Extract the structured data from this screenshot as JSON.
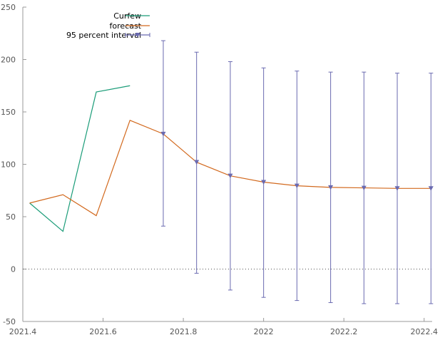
{
  "chart_data": {
    "type": "line",
    "title": "",
    "xlabel": "",
    "ylabel": "",
    "xlim": [
      2021.4,
      2022.42
    ],
    "ylim": [
      -50,
      250
    ],
    "xticks": [
      2021.4,
      2021.6,
      2021.8,
      2022,
      2022.2,
      2022.4
    ],
    "xtick_labels": [
      "2021.4",
      "2021.6",
      "2021.8",
      "2022",
      "2022.2",
      "2022.4"
    ],
    "yticks": [
      -50,
      0,
      50,
      100,
      150,
      200,
      250
    ],
    "ytick_labels": [
      "-50",
      "0",
      "50",
      "100",
      "150",
      "200",
      "250"
    ],
    "grid": false,
    "zero_line": true,
    "legend_position": "top-left",
    "series": [
      {
        "name": "Curfew",
        "color": "#1a9c78",
        "x": [
          2021.417,
          2021.5,
          2021.583,
          2021.667
        ],
        "values": [
          63,
          36,
          169,
          175
        ]
      },
      {
        "name": "forecast",
        "color": "#d2691e",
        "x": [
          2021.417,
          2021.5,
          2021.583,
          2021.667,
          2021.75,
          2021.833,
          2021.917,
          2022.0,
          2022.083,
          2022.167,
          2022.25,
          2022.333,
          2022.417
        ],
        "values": [
          63,
          71,
          51,
          142,
          129,
          102,
          89,
          83,
          79.5,
          78,
          77.5,
          77,
          77
        ]
      },
      {
        "name": "95 percent interval",
        "color": "#6a6ab0",
        "x": [
          2021.75,
          2021.833,
          2021.917,
          2022.0,
          2022.083,
          2022.167,
          2022.25,
          2022.333,
          2022.417
        ],
        "values": [
          129,
          102,
          89,
          83,
          79.5,
          78,
          77.5,
          77,
          77
        ],
        "lower": [
          41,
          -4,
          -20,
          -27,
          -30,
          -32,
          -33,
          -33,
          -33
        ],
        "upper": [
          218,
          207,
          198,
          192,
          189,
          188,
          188,
          187,
          187
        ]
      }
    ]
  }
}
